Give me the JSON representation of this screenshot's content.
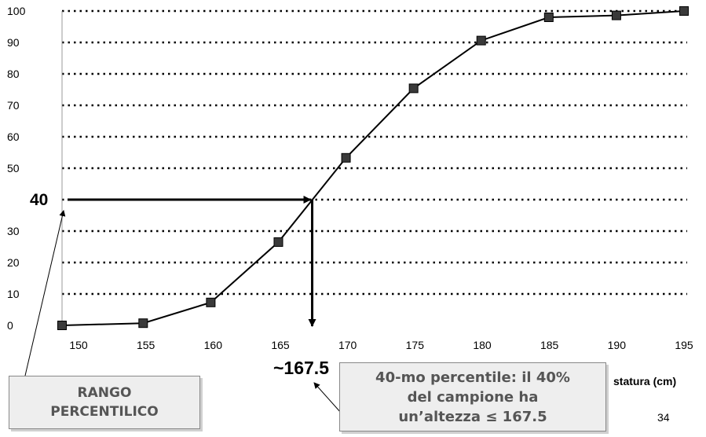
{
  "chart_data": {
    "type": "line",
    "x": [
      149,
      155,
      160,
      165,
      170,
      175,
      180,
      185,
      190,
      195
    ],
    "y": [
      0,
      0.7,
      7.3,
      26.5,
      53.3,
      75.4,
      90.6,
      98.0,
      98.6,
      100
    ],
    "xticks": [
      "150",
      "155",
      "160",
      "165",
      "170",
      "175",
      "180",
      "185",
      "190",
      "195"
    ],
    "yticks": [
      "0",
      "10",
      "20",
      "30",
      "40",
      "50",
      "60",
      "70",
      "80",
      "90",
      "100"
    ],
    "xlabel": "statura (cm)",
    "ylabel": "",
    "xlim": [
      149,
      195
    ],
    "ylim": [
      0,
      100
    ],
    "grid": "horizontal dotted",
    "marker": "square",
    "line_color": "#000000",
    "annotation": {
      "percentile_rank": 40,
      "percentile_value": 167.5,
      "x_label": "~167.5",
      "y_label": "40"
    }
  },
  "labels": {
    "rango": [
      "RANGO",
      "PERCENTILICO"
    ],
    "percentile_text": [
      "40-mo percentile: il 40%",
      "del campione  ha",
      "un’altezza ≤ 167.5"
    ],
    "xlabel": "statura (cm)",
    "marker_x": "~167.5",
    "marker_y": "40",
    "page_number": "34"
  }
}
